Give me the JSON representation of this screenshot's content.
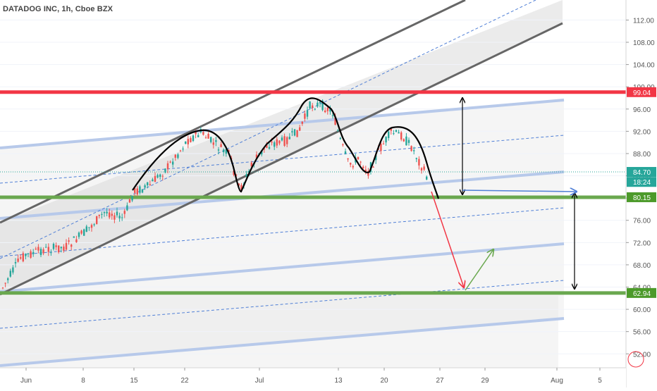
{
  "chart_data": {
    "type": "candlestick",
    "title": "DATADOG INC, 1h, Cboe BZX",
    "y_ticks": [
      "112.00",
      "108.00",
      "104.00",
      "100.00",
      "96.00",
      "92.00",
      "88.00",
      "84.00",
      "80.00",
      "76.00",
      "72.00",
      "68.00",
      "64.00",
      "60.00",
      "56.00",
      "52.00"
    ],
    "y_tick_values": [
      112,
      108,
      104,
      100,
      96,
      92,
      88,
      84,
      80,
      76,
      72,
      68,
      64,
      60,
      56,
      52
    ],
    "ylim": [
      49.5,
      115.6
    ],
    "x_ticks": [
      "Jun",
      "8",
      "15",
      "22",
      "Jul",
      "13",
      "20",
      "27",
      "29",
      "Aug",
      "5"
    ],
    "price_badges": [
      {
        "label": "99.04",
        "value": 99.04,
        "color": "#f23645"
      },
      {
        "label": "84.70",
        "value": 84.7,
        "color": "#26a69a"
      },
      {
        "label": "18:24",
        "value": 82.9,
        "color": "#26a69a"
      },
      {
        "label": "80.15",
        "value": 80.15,
        "color": "#4c9a2a"
      },
      {
        "label": "62.94",
        "value": 62.94,
        "color": "#4c9a2a"
      }
    ],
    "levels": [
      {
        "name": "resistance",
        "value": 99.04,
        "color": "#f23645"
      },
      {
        "name": "neckline-support",
        "value": 80.15,
        "color": "#6aa84f"
      },
      {
        "name": "target-support",
        "value": 62.94,
        "color": "#6aa84f"
      }
    ],
    "current_price": 84.7,
    "colors": {
      "up": "#26a69a",
      "down": "#ef5350",
      "channel": "#606060",
      "pattern": "#000000",
      "projection_down": "#f23645",
      "projection_up": "#6aa84f"
    }
  }
}
